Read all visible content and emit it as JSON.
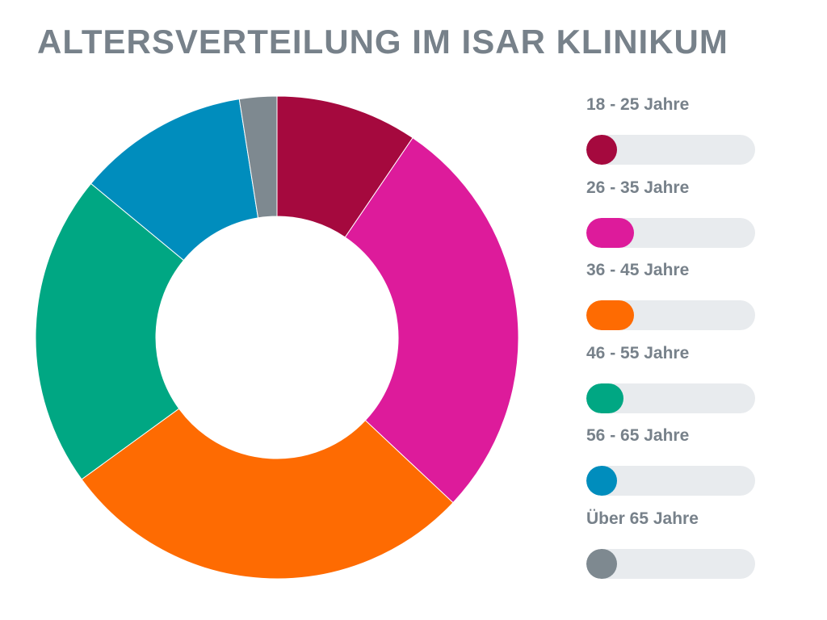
{
  "chart_data": {
    "type": "pie",
    "title": "ALTERSVERTEILUNG IM ISAR KLINIKUM",
    "donut": true,
    "legend_position": "right",
    "categories": [
      "18 - 25 Jahre",
      "26 - 35 Jahre",
      "36 - 45 Jahre",
      "46 - 55 Jahre",
      "56 - 65 Jahre",
      "Über 65 Jahre"
    ],
    "values": [
      9.5,
      27.5,
      28,
      21,
      11.5,
      2.5
    ],
    "colors": [
      "#a5093e",
      "#dd1b9b",
      "#fe6b02",
      "#00a783",
      "#008dbd",
      "#7e8990"
    ],
    "legend_bar_levels": [
      0.18,
      0.28,
      0.28,
      0.22,
      0.18,
      0.18
    ]
  }
}
